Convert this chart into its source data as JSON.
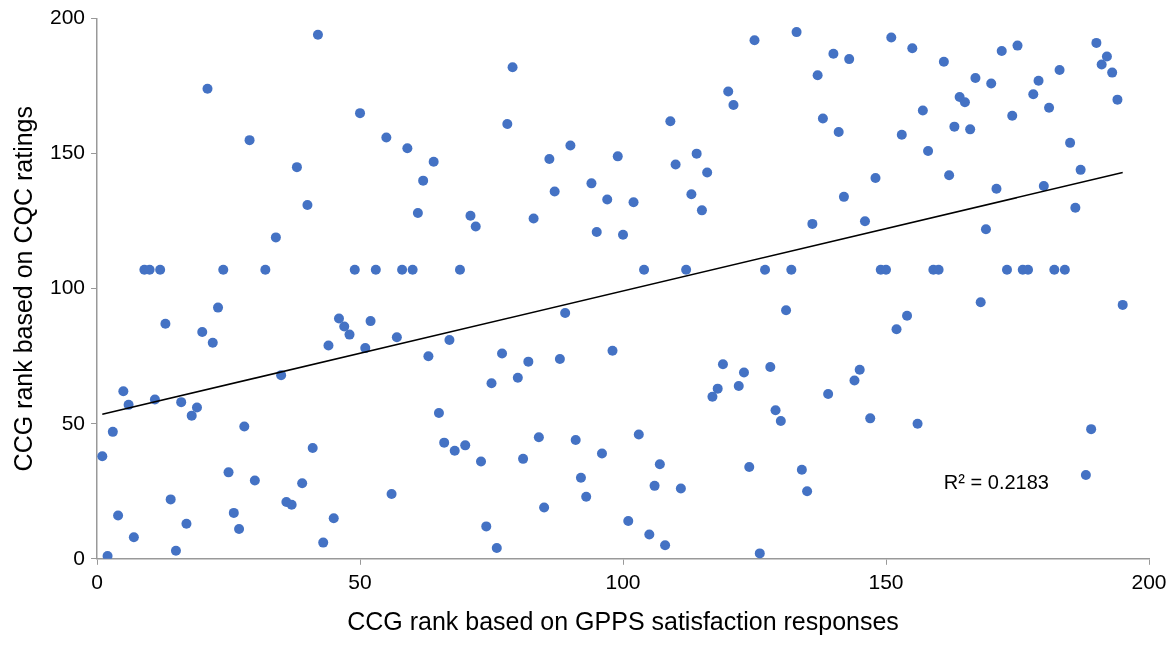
{
  "chart_data": {
    "type": "scatter",
    "xlabel": "CCG rank based on GPPS satisfaction responses",
    "ylabel": "CCG rank based on CQC ratings",
    "xlim": [
      0,
      200
    ],
    "xticks": [
      0,
      50,
      100,
      150,
      200
    ],
    "ylim": [
      0,
      200
    ],
    "yticks": [
      0,
      50,
      100,
      150,
      200
    ],
    "grid": false,
    "legend": false,
    "annotations": [
      "R² = 0.2183"
    ],
    "series": [
      {
        "type": "scatter",
        "color": "#4472c4",
        "marker": "circle",
        "x": [
          1,
          2,
          3,
          4,
          5,
          6,
          7,
          9,
          10,
          11,
          12,
          13,
          14,
          15,
          16,
          17,
          18,
          19,
          20,
          21,
          22,
          23,
          24,
          25,
          26,
          27,
          28,
          29,
          30,
          32,
          34,
          35,
          36,
          37,
          38,
          39,
          40,
          41,
          42,
          43,
          44,
          45,
          46,
          47,
          48,
          49,
          50,
          51,
          52,
          53,
          55,
          56,
          57,
          58,
          59,
          60,
          61,
          62,
          63,
          64,
          65,
          66,
          67,
          68,
          69,
          70,
          71,
          72,
          73,
          74,
          75,
          76,
          77,
          78,
          79,
          80,
          81,
          82,
          83,
          84,
          85,
          86,
          87,
          88,
          89,
          90,
          91,
          92,
          93,
          94,
          95,
          96,
          97,
          98,
          99,
          100,
          101,
          102,
          103,
          104,
          105,
          106,
          107,
          108,
          109,
          110,
          111,
          112,
          113,
          114,
          115,
          116,
          117,
          118,
          119,
          120,
          121,
          122,
          123,
          124,
          125,
          126,
          127,
          128,
          129,
          130,
          131,
          132,
          133,
          134,
          135,
          136,
          137,
          138,
          139,
          140,
          141,
          142,
          143,
          144,
          145,
          146,
          147,
          148,
          149,
          150,
          151,
          152,
          153,
          154,
          155,
          156,
          157,
          158,
          159,
          160,
          161,
          162,
          163,
          164,
          165,
          166,
          167,
          168,
          169,
          170,
          171,
          172,
          173,
          174,
          175,
          176,
          177,
          178,
          179,
          180,
          181,
          182,
          183,
          184,
          185,
          186,
          187,
          188,
          189,
          190,
          191,
          192,
          193,
          194,
          195
        ],
        "values": [
          38,
          1,
          47,
          16,
          62,
          57,
          8,
          107,
          107,
          59,
          107,
          87,
          22,
          3,
          58,
          13,
          53,
          56,
          84,
          174,
          80,
          93,
          107,
          32,
          17,
          11,
          49,
          155,
          29,
          107,
          119,
          68,
          21,
          20,
          145,
          28,
          131,
          41,
          194,
          6,
          79,
          15,
          89,
          86,
          83,
          107,
          165,
          78,
          88,
          107,
          156,
          24,
          82,
          107,
          152,
          107,
          128,
          140,
          75,
          147,
          54,
          43,
          81,
          40,
          107,
          42,
          127,
          123,
          36,
          12,
          65,
          4,
          76,
          161,
          182,
          67,
          37,
          73,
          126,
          45,
          19,
          148,
          136,
          74,
          91,
          153,
          44,
          30,
          23,
          139,
          121,
          39,
          133,
          77,
          149,
          120,
          14,
          132,
          46,
          107,
          9,
          27,
          35,
          5,
          162,
          146,
          26,
          107,
          135,
          150,
          129,
          143,
          60,
          63,
          72,
          173,
          168,
          64,
          69,
          34,
          192,
          2,
          107,
          71,
          55,
          51,
          92,
          107,
          195,
          33,
          25,
          124,
          179,
          163,
          61,
          187,
          158,
          134,
          185,
          66,
          70,
          125,
          52,
          141,
          107,
          107,
          193,
          85,
          157,
          90,
          189,
          50,
          166,
          151,
          107,
          107,
          184,
          142,
          160,
          171,
          169,
          159,
          178,
          95,
          122,
          176,
          137,
          188,
          107,
          164,
          190,
          107,
          107,
          172,
          177,
          138,
          167,
          107,
          181,
          107,
          154,
          130,
          144,
          31,
          48,
          191,
          183,
          186,
          180,
          170,
          94
        ]
      },
      {
        "type": "line",
        "color": "#000000",
        "x": [
          1,
          195
        ],
        "values": [
          53.5,
          143
        ]
      }
    ]
  }
}
